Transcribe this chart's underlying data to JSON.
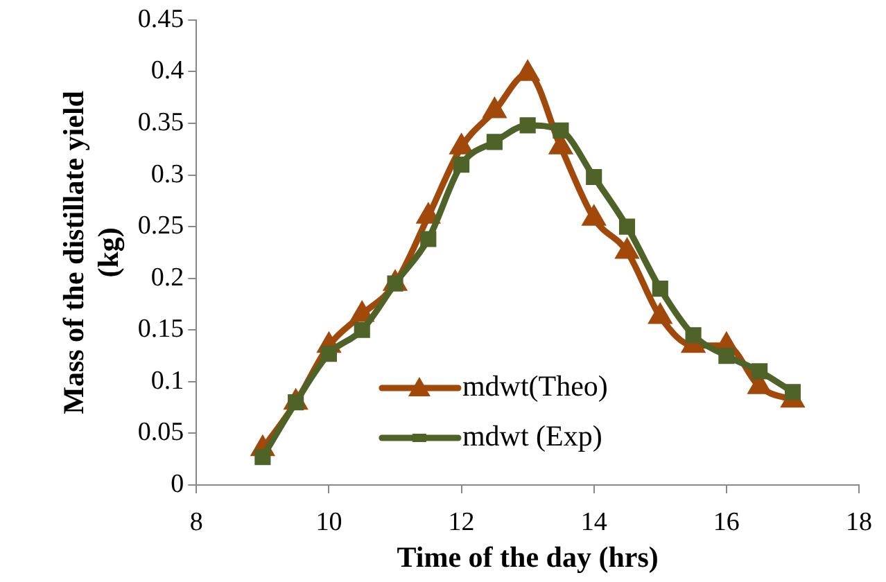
{
  "chart_data": {
    "type": "line",
    "xlabel": "Time of the day (hrs)",
    "ylabel": "Mass of the distillate yield (kg)",
    "x": [
      9,
      9.5,
      10,
      10.5,
      11,
      11.5,
      12,
      12.5,
      13,
      13.5,
      14,
      14.5,
      15,
      15.5,
      16,
      16.5,
      17
    ],
    "series": [
      {
        "name": "mdwt(Theo)",
        "color": "#a0490a",
        "marker": "triangle",
        "values": [
          0.035,
          0.08,
          0.135,
          0.165,
          0.195,
          0.26,
          0.327,
          0.362,
          0.398,
          0.327,
          0.258,
          0.226,
          0.163,
          0.135,
          0.135,
          0.095,
          0.082
        ]
      },
      {
        "name": "mdwt (Exp)",
        "color": "#4f6228",
        "marker": "square",
        "values": [
          0.027,
          0.08,
          0.127,
          0.15,
          0.195,
          0.238,
          0.31,
          0.332,
          0.348,
          0.343,
          0.298,
          0.25,
          0.19,
          0.145,
          0.125,
          0.11,
          0.09
        ]
      }
    ],
    "xlim": [
      8,
      18
    ],
    "xticks": [
      8,
      10,
      12,
      14,
      16,
      18
    ],
    "ylim": [
      0,
      0.45
    ],
    "yticks": [
      0,
      0.05,
      0.1,
      0.15,
      0.2,
      0.25,
      0.3,
      0.35,
      0.4,
      0.45
    ],
    "grid": false,
    "legend": "bottom"
  }
}
